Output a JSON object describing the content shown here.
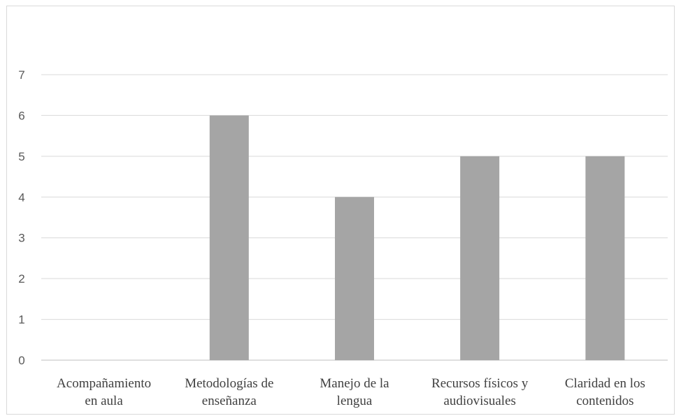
{
  "chart_data": {
    "type": "bar",
    "categories": [
      [
        "Acompañamiento",
        "en aula"
      ],
      [
        "Metodologías de",
        "enseñanza"
      ],
      [
        "Manejo de la",
        "lengua"
      ],
      [
        "Recursos físicos y",
        "audiovisuales"
      ],
      [
        "Claridad en los",
        "contenidos"
      ]
    ],
    "values": [
      0,
      6,
      4,
      5,
      5
    ],
    "ylim": [
      0,
      7
    ],
    "yticks": [
      0,
      1,
      2,
      3,
      4,
      5,
      6,
      7
    ],
    "title": "",
    "xlabel": "",
    "ylabel": "",
    "grid": true,
    "legend": "none",
    "colors": {
      "bar": "#a5a5a5",
      "grid": "#d9d9d9",
      "axis": "#bfbfbf",
      "tick_text": "#595959",
      "category_text": "#404040"
    }
  }
}
